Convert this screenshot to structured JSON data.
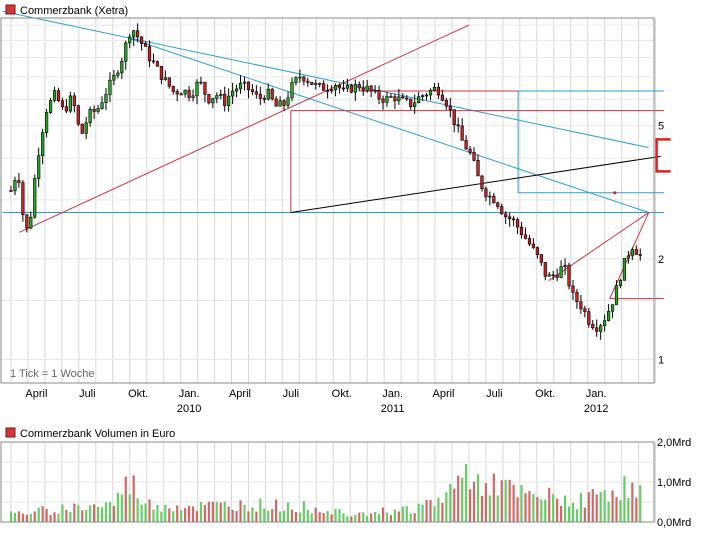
{
  "chart_data": [
    {
      "type": "candlestick",
      "title": "Commerzbank (Xetra)",
      "note": "1 Tick = 1 Woche",
      "y_scale": "log",
      "ylim": [
        0.85,
        10.5
      ],
      "y_ticks": [
        {
          "value": 5,
          "label": "5"
        },
        {
          "value": 2,
          "label": "2"
        },
        {
          "value": 1,
          "label": "1"
        }
      ],
      "x_ticks": [
        {
          "t": 1.5,
          "label": "April",
          "year": ""
        },
        {
          "t": 4.5,
          "label": "Juli",
          "year": ""
        },
        {
          "t": 7.5,
          "label": "Okt.",
          "year": ""
        },
        {
          "t": 10.5,
          "label": "Jan.",
          "year": "2010"
        },
        {
          "t": 13.5,
          "label": "April",
          "year": ""
        },
        {
          "t": 16.5,
          "label": "Juli",
          "year": ""
        },
        {
          "t": 19.5,
          "label": "Okt.",
          "year": ""
        },
        {
          "t": 22.5,
          "label": "Jan.",
          "year": "2011"
        },
        {
          "t": 25.5,
          "label": "April",
          "year": ""
        },
        {
          "t": 28.5,
          "label": "Juli",
          "year": ""
        },
        {
          "t": 31.5,
          "label": "Okt.",
          "year": ""
        },
        {
          "t": 34.5,
          "label": "Jan.",
          "year": "2012"
        }
      ],
      "colors": {
        "up": "#22aa22",
        "down": "#cc2222",
        "grid": "#d8d8d8",
        "blue_line": "#2aa0d0",
        "red_line": "#d03040",
        "black_line": "#000000"
      },
      "price_anchors": [
        [
          0,
          3.2
        ],
        [
          0.4,
          3.7
        ],
        [
          0.8,
          2.4
        ],
        [
          1.1,
          2.5
        ],
        [
          1.6,
          4.1
        ],
        [
          2.1,
          5.6
        ],
        [
          2.6,
          6.2
        ],
        [
          3.1,
          5.5
        ],
        [
          3.6,
          6.1
        ],
        [
          4.1,
          4.6
        ],
        [
          4.6,
          5.4
        ],
        [
          5.1,
          5.6
        ],
        [
          5.6,
          6.3
        ],
        [
          6.1,
          7.0
        ],
        [
          6.6,
          8.1
        ],
        [
          7.1,
          9.9
        ],
        [
          7.6,
          9.0
        ],
        [
          8.1,
          8.1
        ],
        [
          8.6,
          7.4
        ],
        [
          9.1,
          6.8
        ],
        [
          9.6,
          6.3
        ],
        [
          10.1,
          6.4
        ],
        [
          10.6,
          6.2
        ],
        [
          11.1,
          6.8
        ],
        [
          11.6,
          6.0
        ],
        [
          12.1,
          6.2
        ],
        [
          12.6,
          5.9
        ],
        [
          13.1,
          6.4
        ],
        [
          13.6,
          6.6
        ],
        [
          14.1,
          6.4
        ],
        [
          14.6,
          6.0
        ],
        [
          15.1,
          6.3
        ],
        [
          15.6,
          5.7
        ],
        [
          16.1,
          5.8
        ],
        [
          16.6,
          6.6
        ],
        [
          17.1,
          7.1
        ],
        [
          17.6,
          6.8
        ],
        [
          18.1,
          6.5
        ],
        [
          18.6,
          6.5
        ],
        [
          19.1,
          6.7
        ],
        [
          19.6,
          6.3
        ],
        [
          20.1,
          6.5
        ],
        [
          20.6,
          6.6
        ],
        [
          21.1,
          6.4
        ],
        [
          21.6,
          6.1
        ],
        [
          22.1,
          6.0
        ],
        [
          22.6,
          6.1
        ],
        [
          23.1,
          5.9
        ],
        [
          23.6,
          5.8
        ],
        [
          24.1,
          6.1
        ],
        [
          24.6,
          6.3
        ],
        [
          25.1,
          6.5
        ],
        [
          25.6,
          6.0
        ],
        [
          26.1,
          5.2
        ],
        [
          26.6,
          4.5
        ],
        [
          27.1,
          4.1
        ],
        [
          27.6,
          3.4
        ],
        [
          28.1,
          3.1
        ],
        [
          28.6,
          3.0
        ],
        [
          29.1,
          2.7
        ],
        [
          29.6,
          2.6
        ],
        [
          30.1,
          2.4
        ],
        [
          30.6,
          2.2
        ],
        [
          31.1,
          2.0
        ],
        [
          31.6,
          1.75
        ],
        [
          32.1,
          1.8
        ],
        [
          32.6,
          1.9
        ],
        [
          33.1,
          1.55
        ],
        [
          33.6,
          1.45
        ],
        [
          34.1,
          1.3
        ],
        [
          34.6,
          1.25
        ],
        [
          35.1,
          1.35
        ],
        [
          35.6,
          1.55
        ],
        [
          36.1,
          1.9
        ],
        [
          36.6,
          2.2
        ],
        [
          37.1,
          2.05
        ]
      ],
      "horizontal_levels": [
        {
          "value": 2.75,
          "color": "blue"
        },
        {
          "value": 3.2,
          "color": "red"
        },
        {
          "value": 5.55,
          "color": "red"
        },
        {
          "value": 6.3,
          "color": "red"
        },
        {
          "value": 1.52,
          "color": "red"
        }
      ]
    },
    {
      "type": "bar",
      "title": "Commerzbank Volumen in Euro",
      "ylim": [
        0,
        2000000000
      ],
      "y_ticks": [
        {
          "value": 0,
          "label": "0,0Mrd"
        },
        {
          "value": 1000000000,
          "label": "1,0Mrd"
        },
        {
          "value": 2000000000,
          "label": "2,0Mrd"
        }
      ],
      "colors": {
        "up": "#66cc66",
        "down": "#d06868"
      },
      "volume_anchors": [
        [
          0,
          0.2
        ],
        [
          3,
          0.35
        ],
        [
          6,
          0.45
        ],
        [
          7,
          1.05
        ],
        [
          8,
          0.45
        ],
        [
          11,
          0.4
        ],
        [
          14,
          0.45
        ],
        [
          17,
          0.4
        ],
        [
          20,
          0.25
        ],
        [
          23,
          0.3
        ],
        [
          25,
          0.5
        ],
        [
          26,
          0.85
        ],
        [
          27,
          1.3
        ],
        [
          28,
          1.1
        ],
        [
          29,
          0.9
        ],
        [
          30,
          0.7
        ],
        [
          31,
          0.6
        ],
        [
          32,
          0.65
        ],
        [
          33,
          0.55
        ],
        [
          34,
          0.6
        ],
        [
          35,
          0.8
        ],
        [
          36,
          0.9
        ],
        [
          37,
          0.75
        ]
      ]
    }
  ]
}
